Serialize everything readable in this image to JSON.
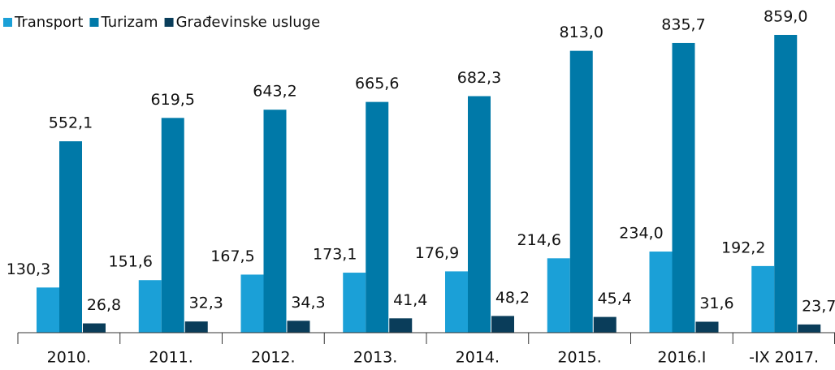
{
  "chart_data": {
    "type": "bar",
    "categories": [
      "2010.",
      "2011.",
      "2012.",
      "2013.",
      "2014.",
      "2015.",
      "2016.I",
      "-IX 2017."
    ],
    "series": [
      {
        "name": "Transport",
        "color": "#1ba0d7",
        "values": [
          130.3,
          151.6,
          167.5,
          173.1,
          176.9,
          214.6,
          234.0,
          192.2
        ],
        "value_labels": [
          "130,3",
          "151,6",
          "167,5",
          "173,1",
          "176,9",
          "214,6",
          "234,0",
          "192,2"
        ]
      },
      {
        "name": "Turizam",
        "color": "#0079a8",
        "values": [
          552.1,
          619.5,
          643.2,
          665.6,
          682.3,
          813.0,
          835.7,
          859.0
        ],
        "value_labels": [
          "552,1",
          "619,5",
          "643,2",
          "665,6",
          "682,3",
          "813,0",
          "835,7",
          "859,0"
        ]
      },
      {
        "name": "Građevinske  usluge",
        "color": "#0a3d5a",
        "values": [
          26.8,
          32.3,
          34.3,
          41.4,
          48.2,
          45.4,
          31.6,
          23.7
        ],
        "value_labels": [
          "26,8",
          "32,3",
          "34,3",
          "41,4",
          "48,2",
          "45,4",
          "31,6",
          "23,7"
        ]
      }
    ],
    "legend": "top-left"
  }
}
